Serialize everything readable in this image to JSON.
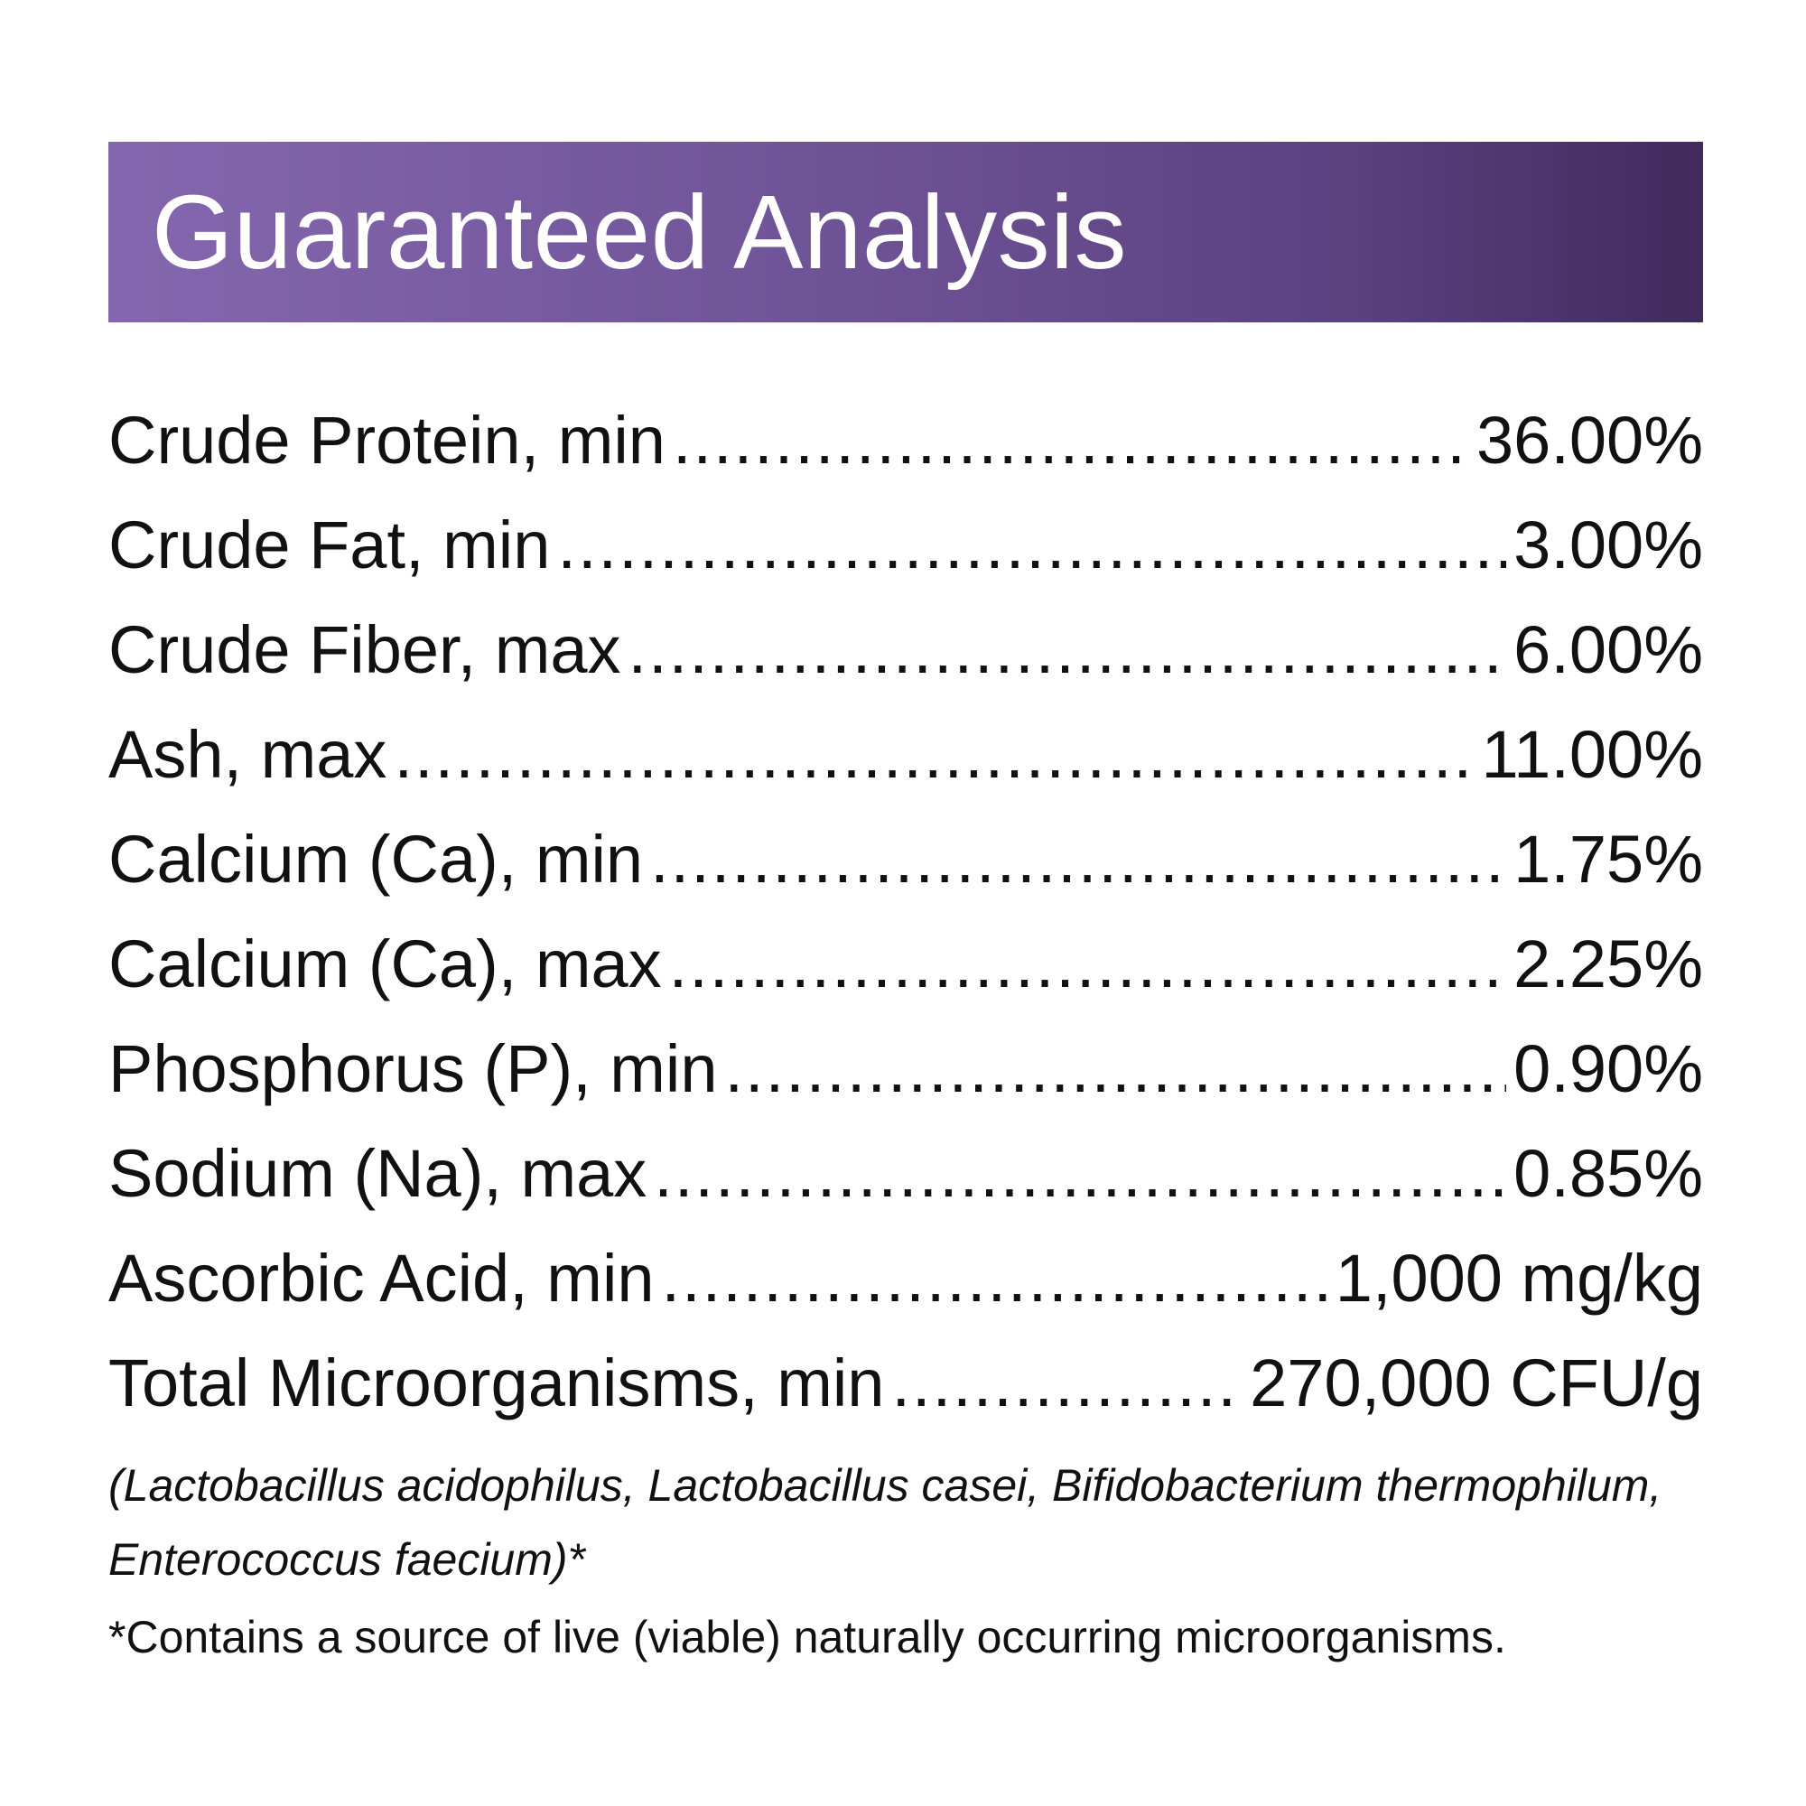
{
  "header": {
    "title": "Guaranteed Analysis",
    "gradient_colors": [
      "#8467ae",
      "#422a5c"
    ]
  },
  "rows": [
    {
      "label": "Crude Protein, min",
      "value": "36.00%"
    },
    {
      "label": "Crude Fat, min",
      "value": "3.00%"
    },
    {
      "label": "Crude Fiber, max",
      "value": "6.00%"
    },
    {
      "label": "Ash, max",
      "value": "11.00%"
    },
    {
      "label": "Calcium (Ca), min",
      "value": "1.75%"
    },
    {
      "label": "Calcium (Ca), max",
      "value": "2.25%"
    },
    {
      "label": "Phosphorus (P), min",
      "value": "0.90%"
    },
    {
      "label": "Sodium (Na), max",
      "value": "0.85%"
    },
    {
      "label": "Ascorbic Acid, min",
      "value": "1,000 mg/kg"
    },
    {
      "label": "Total Microorganisms, min",
      "value": "270,000 CFU/g"
    }
  ],
  "notes": {
    "species": "(Lactobacillus acidophilus, Lactobacillus casei, Bifidobacterium thermophilum, Enterococcus faecium)*",
    "footnote": "*Contains a source of live (viable) naturally occurring microorganisms."
  }
}
